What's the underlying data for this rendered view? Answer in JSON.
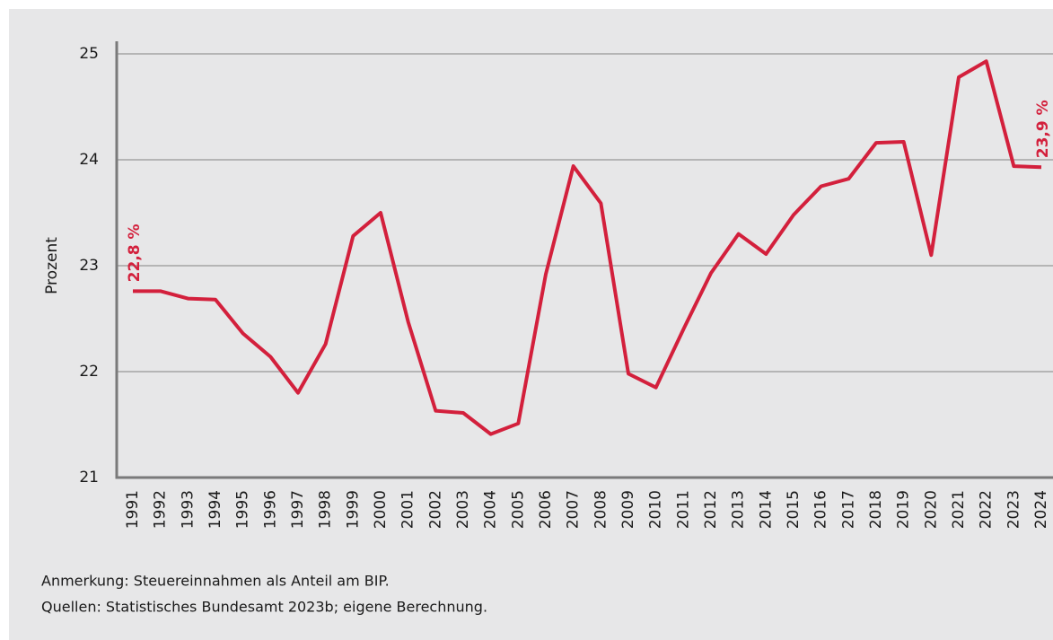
{
  "chart_data": {
    "type": "line",
    "y_label": "Prozent",
    "categories": [
      "1991",
      "1992",
      "1993",
      "1994",
      "1995",
      "1996",
      "1997",
      "1998",
      "1999",
      "2000",
      "2001",
      "2002",
      "2003",
      "2004",
      "2005",
      "2006",
      "2007",
      "2008",
      "2009",
      "2010",
      "2011",
      "2012",
      "2013",
      "2014",
      "2015",
      "2016",
      "2017",
      "2018",
      "2019",
      "2020",
      "2021",
      "2022",
      "2023",
      "2024"
    ],
    "series": [
      {
        "color": "#d3203c",
        "values": [
          22.76,
          22.76,
          22.69,
          22.68,
          22.36,
          22.14,
          21.8,
          22.26,
          23.28,
          23.5,
          22.47,
          21.63,
          21.61,
          21.41,
          21.51,
          22.92,
          23.94,
          23.59,
          21.98,
          21.85,
          22.4,
          22.93,
          23.3,
          23.11,
          23.48,
          23.75,
          23.82,
          24.16,
          24.17,
          23.1,
          24.78,
          24.93,
          23.94,
          23.93
        ],
        "value_labels": [
          "22,8 %",
          null,
          null,
          null,
          null,
          null,
          null,
          null,
          null,
          null,
          null,
          null,
          null,
          null,
          null,
          null,
          null,
          null,
          null,
          null,
          null,
          null,
          null,
          null,
          null,
          null,
          null,
          null,
          null,
          null,
          null,
          null,
          null,
          "23,9 %"
        ]
      }
    ],
    "ylim": [
      21,
      25
    ],
    "yticks": [
      21,
      22,
      23,
      24,
      25
    ],
    "grid": true,
    "notes": [
      "Anmerkung: Steuereinnahmen als Anteil am BIP.",
      "Quellen: Statistisches Bundesamt 2023b; eigene Berechnung."
    ]
  }
}
